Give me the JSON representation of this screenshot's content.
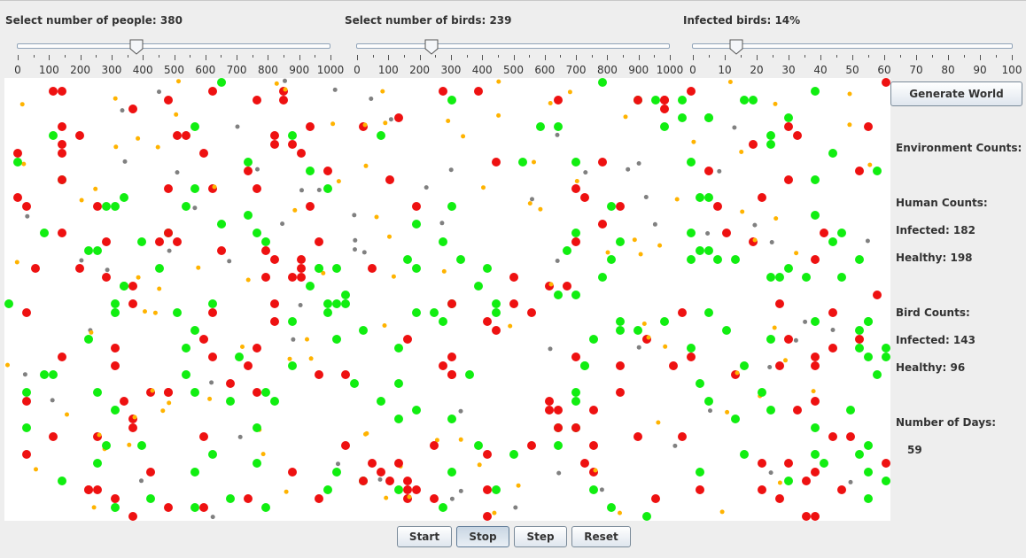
{
  "sliders": [
    {
      "label": "Select number of people: 380",
      "value": 380,
      "min": 0,
      "max": 1000,
      "ticks": [
        "0",
        "100",
        "200",
        "300",
        "400",
        "500",
        "600",
        "700",
        "800",
        "900",
        "1000"
      ]
    },
    {
      "label": "Select number of birds: 239",
      "value": 239,
      "min": 0,
      "max": 1000,
      "ticks": [
        "0",
        "100",
        "200",
        "300",
        "400",
        "500",
        "600",
        "700",
        "800",
        "900",
        "1000"
      ]
    },
    {
      "label": "Infected birds: 14%",
      "value": 14,
      "min": 0,
      "max": 100,
      "ticks": [
        "0",
        "10",
        "20",
        "30",
        "40",
        "50",
        "60",
        "70",
        "80",
        "90",
        "100"
      ]
    }
  ],
  "buttons": {
    "generate": "Generate World",
    "start": "Start",
    "stop": "Stop",
    "step": "Step",
    "reset": "Reset"
  },
  "stats": {
    "environment_heading": "Environment Counts:",
    "human_heading": "Human Counts:",
    "human_infected": "Infected: 182",
    "human_healthy": "Healthy: 198",
    "bird_heading": "Bird Counts:",
    "bird_infected": "Infected: 143",
    "bird_healthy": "Healthy: 96",
    "days_heading": "Number of Days:",
    "days_value": "59"
  },
  "colors": {
    "infected": "#ee1111",
    "healthy": "#11ee11",
    "bird_dot": "#ffb300",
    "env_dot": "#808080"
  },
  "legend_semantics": {
    "large_dot": "person",
    "small_orange_dot": "bird",
    "small_gray_dot": "environment"
  }
}
